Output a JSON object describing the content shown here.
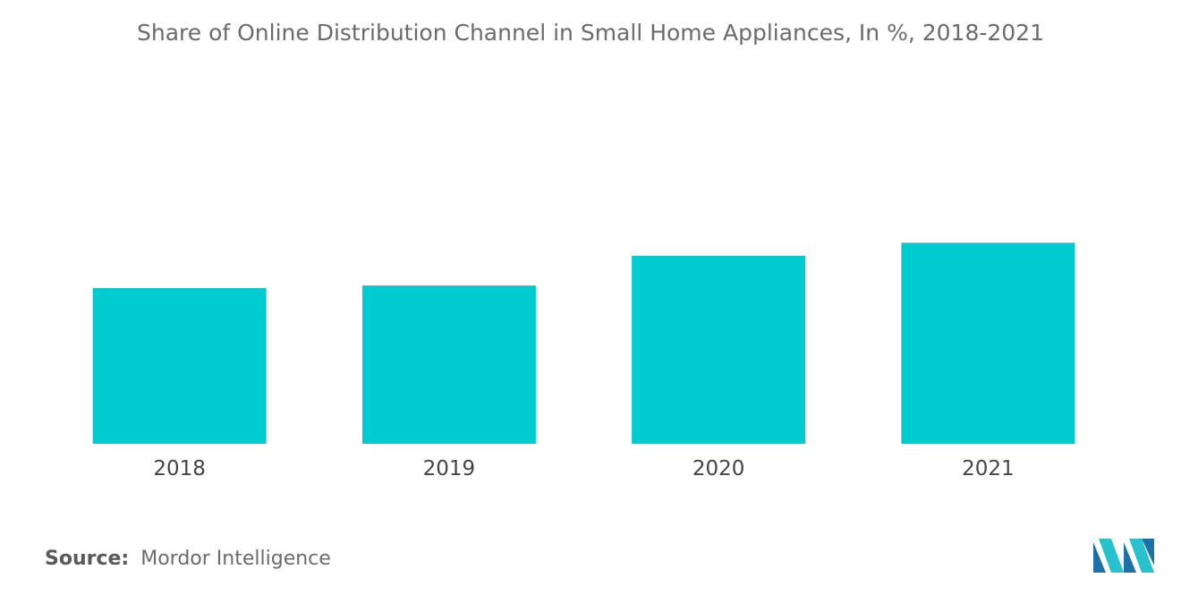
{
  "colors": {
    "bar": "#00ccd0",
    "title": "#6b6b6b",
    "tick": "#444444",
    "logo_dark": "#1f6fa8",
    "logo_light": "#28c2cf"
  },
  "source": {
    "label": "Source:",
    "value": "Mordor Intelligence"
  },
  "logo": {
    "icon": "mordor-intelligence-logo"
  },
  "chart_data": {
    "type": "bar",
    "title": "Share of Online Distribution Channel in Small Home Appliances, In %, 2018-2021",
    "xlabel": "",
    "ylabel": "",
    "categories": [
      "2018",
      "2019",
      "2020",
      "2021"
    ],
    "series": [
      {
        "values": [
          24.0,
          24.4,
          29.0,
          31.0
        ]
      }
    ],
    "ylim": [
      0,
      40
    ],
    "grid": false,
    "legend": "none",
    "data_labels": false
  }
}
